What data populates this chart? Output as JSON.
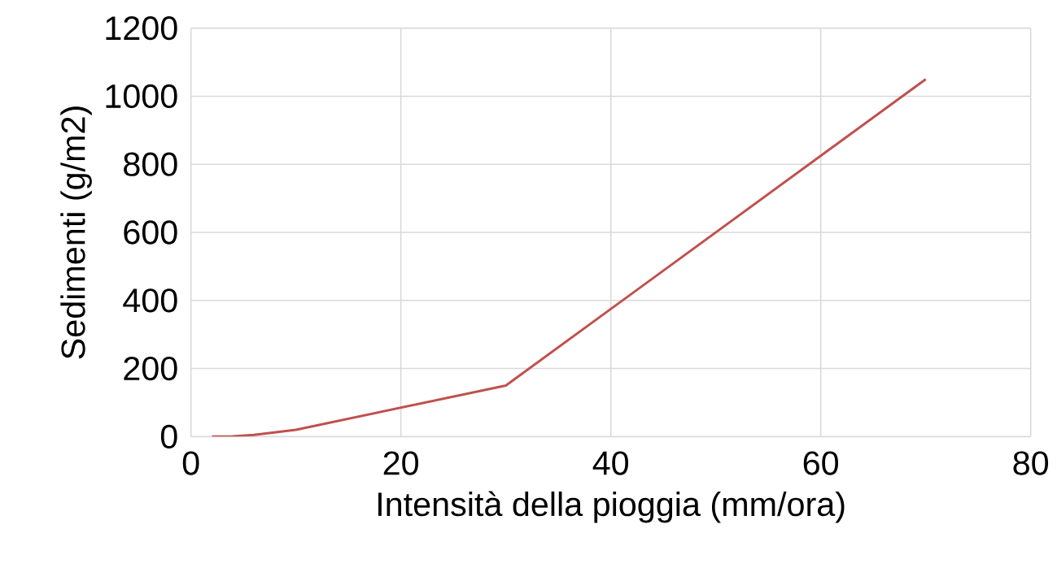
{
  "chart_data": {
    "type": "line",
    "xlabel": "Intensità della pioggia (mm/ora)",
    "ylabel": "Sedimenti (g/m2)",
    "series": [
      {
        "color": "#c0504d",
        "x": [
          2,
          4,
          6,
          10,
          30,
          70
        ],
        "values": [
          0,
          1,
          5,
          20,
          150,
          1050
        ]
      }
    ],
    "xlim": [
      0,
      80
    ],
    "ylim": [
      0,
      1200
    ],
    "xticks": [
      0,
      20,
      40,
      60,
      80
    ],
    "yticks": [
      0,
      200,
      400,
      600,
      800,
      1000,
      1200
    ],
    "grid": true,
    "marker": "none",
    "line_style": "solid"
  }
}
